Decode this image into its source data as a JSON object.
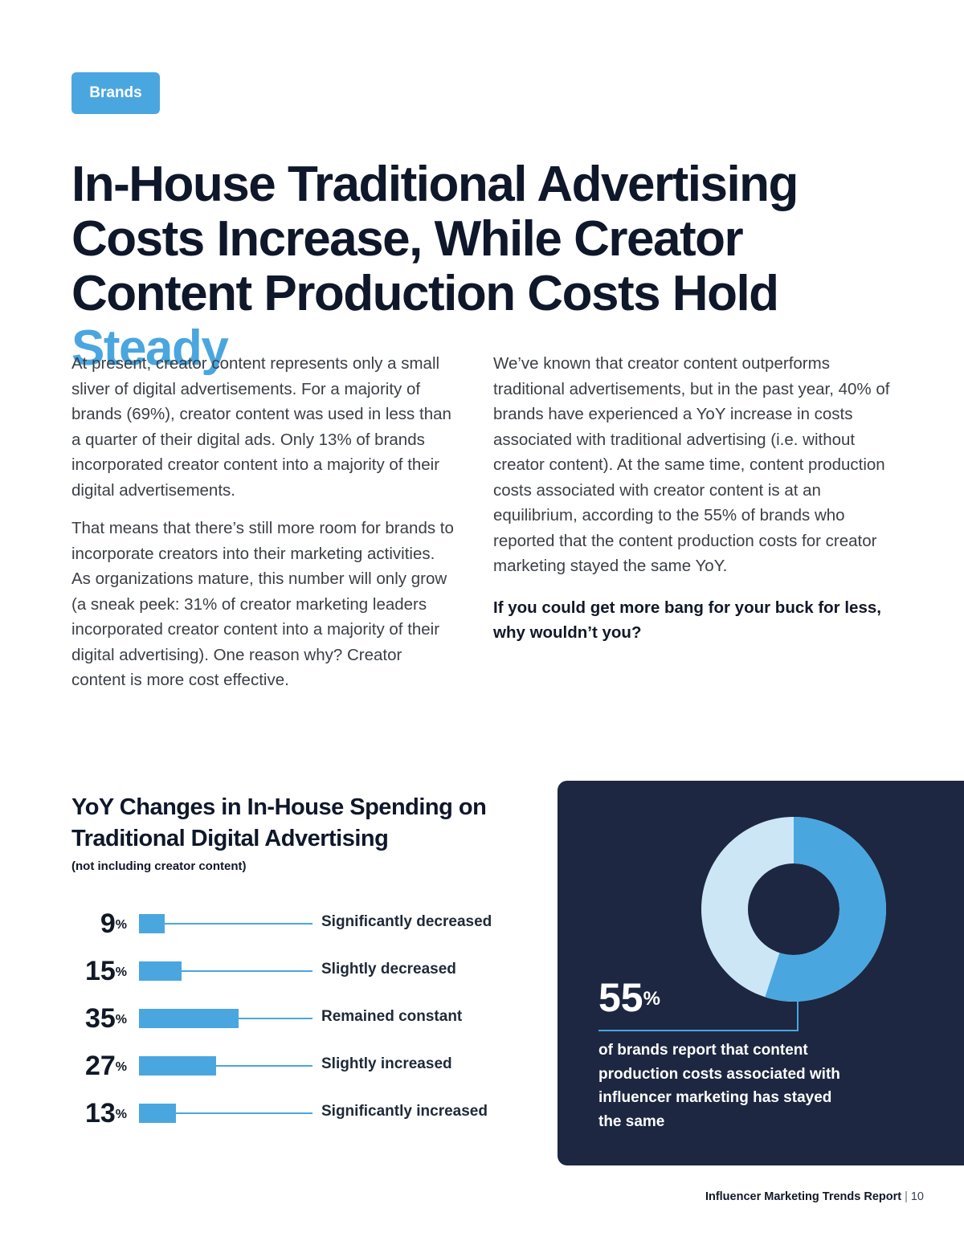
{
  "tag": "Brands",
  "title": {
    "main": "In-House Traditional Advertising Costs Increase, While Creator Content Production Costs Hold",
    "accent": "Steady"
  },
  "left_column": [
    "At present, creator content represents only a small sliver of digital advertisements. For a majority of brands (69%), creator content was used in less than a quarter of their digital ads. Only 13% of brands incorporated creator content into a majority of their digital advertisements.",
    "That means that there’s still more room for brands to incorporate creators into their marketing activities. As organizations mature, this number will only grow (a sneak peek: 31% of creator marketing leaders incorporated creator content into a majority of their digital advertising). One reason why? Creator content is more cost effective."
  ],
  "right_column": [
    "We’ve known that creator content outperforms traditional advertisements, but in the past year, 40% of brands have experienced a YoY increase in costs associated with traditional advertising (i.e. without creator content). At the same time, content production costs associated with creator content is at an equilibrium, according to the 55% of brands who reported that the content production costs for creator marketing stayed the same YoY."
  ],
  "right_column_emphasis": "If you could get more bang for your buck for less, why wouldn’t you?",
  "chart_data": {
    "type": "bar",
    "title": "YoY Changes in In-House Spending on Traditional Digital Advertising",
    "subtitle": "(not including creator content)",
    "categories": [
      "Significantly decreased",
      "Slightly decreased",
      "Remained constant",
      "Slightly increased",
      "Significantly increased"
    ],
    "values": [
      9,
      15,
      35,
      27,
      13
    ],
    "value_suffix": "%",
    "xlim": [
      0,
      100
    ]
  },
  "stat": {
    "value": 55,
    "value_text": "55",
    "suffix": "%",
    "description": "of brands report that content production costs associated with influencer marketing has stayed the same",
    "colors": {
      "highlight": "#4aa6df",
      "remainder": "#cde6f6",
      "background": "#1d2741"
    }
  },
  "footer": {
    "report": "Influencer Marketing Trends Report",
    "separator": "|",
    "page": "10"
  }
}
